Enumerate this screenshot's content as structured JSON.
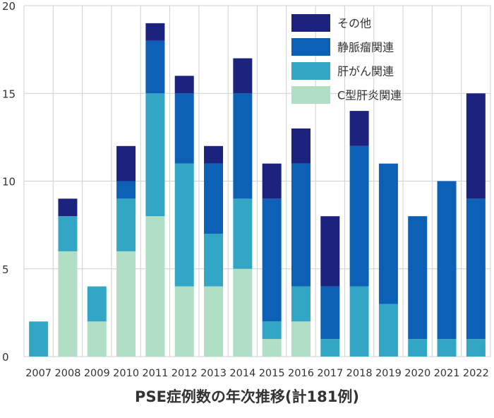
{
  "chart_data": {
    "type": "bar",
    "stacked": true,
    "title": "PSE症例数の年次推移(計181例)",
    "xlabel": "",
    "ylabel": "",
    "ylim": [
      0,
      20
    ],
    "yticks": [
      0,
      5,
      10,
      15,
      20
    ],
    "grid": true,
    "legend_position": "top-right",
    "categories": [
      "2007",
      "2008",
      "2009",
      "2010",
      "2011",
      "2012",
      "2013",
      "2014",
      "2015",
      "2016",
      "2017",
      "2018",
      "2019",
      "2020",
      "2021",
      "2022"
    ],
    "series": [
      {
        "name": "C型肝炎関連",
        "color": "#b1dfc5",
        "values": [
          0,
          6,
          2,
          6,
          8,
          4,
          4,
          5,
          1,
          2,
          0,
          0,
          0,
          0,
          0,
          0
        ]
      },
      {
        "name": "肝がん関連",
        "color": "#34a6c5",
        "values": [
          2,
          2,
          2,
          3,
          7,
          7,
          3,
          4,
          1,
          2,
          1,
          4,
          3,
          1,
          1,
          1
        ]
      },
      {
        "name": "静脈瘤関連",
        "color": "#0c60b5",
        "values": [
          0,
          0,
          0,
          1,
          3,
          4,
          4,
          6,
          7,
          7,
          3,
          8,
          8,
          7,
          9,
          8
        ]
      },
      {
        "name": "その他",
        "color": "#1b237e",
        "values": [
          0,
          1,
          0,
          2,
          1,
          1,
          1,
          2,
          2,
          2,
          4,
          2,
          0,
          0,
          0,
          6
        ]
      }
    ],
    "legend_order": [
      "その他",
      "静脈瘤関連",
      "肝がん関連",
      "C型肝炎関連"
    ]
  }
}
